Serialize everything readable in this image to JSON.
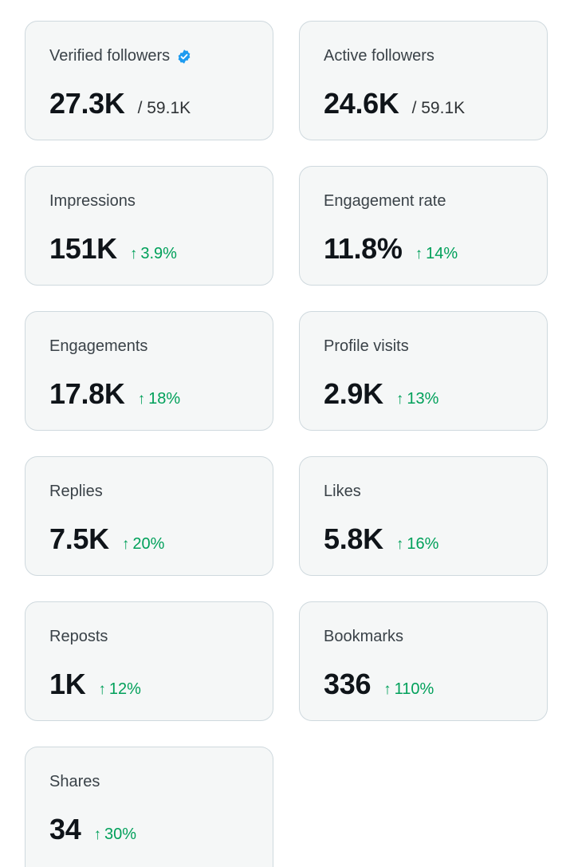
{
  "cards": [
    {
      "label": "Verified followers",
      "value": "27.3K",
      "total": "/ 59.1K"
    },
    {
      "label": "Active followers",
      "value": "24.6K",
      "total": "/ 59.1K"
    },
    {
      "label": "Impressions",
      "value": "151K",
      "change": "3.9%"
    },
    {
      "label": "Engagement rate",
      "value": "11.8%",
      "change": "14%"
    },
    {
      "label": "Engagements",
      "value": "17.8K",
      "change": "18%"
    },
    {
      "label": "Profile visits",
      "value": "2.9K",
      "change": "13%"
    },
    {
      "label": "Replies",
      "value": "7.5K",
      "change": "20%"
    },
    {
      "label": "Likes",
      "value": "5.8K",
      "change": "16%"
    },
    {
      "label": "Reposts",
      "value": "1K",
      "change": "12%"
    },
    {
      "label": "Bookmarks",
      "value": "336",
      "change": "110%"
    },
    {
      "label": "Shares",
      "value": "34",
      "change": "30%"
    }
  ],
  "icons": {
    "verified": "verified-badge-icon",
    "trend_up": "arrow-up-icon",
    "verified_color": "#1d9bf0",
    "trend_color": "#00a05a"
  }
}
